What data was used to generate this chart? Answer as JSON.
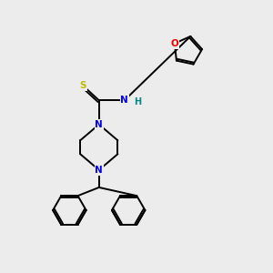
{
  "background_color": "#ececec",
  "atom_colors": {
    "C": "#000000",
    "N": "#0000ee",
    "O": "#ee0000",
    "S": "#bbbb00",
    "H": "#008888"
  },
  "figsize": [
    3.0,
    3.0
  ],
  "dpi": 100
}
